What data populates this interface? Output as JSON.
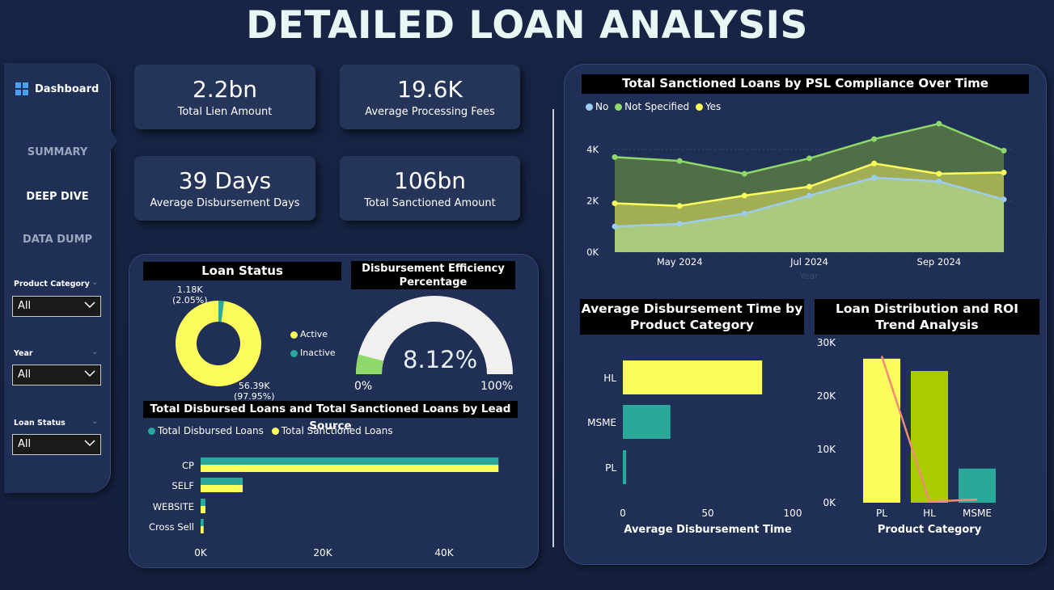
{
  "page": {
    "title": "DETAILED LOAN ANALYSIS"
  },
  "sidebar": {
    "dashboard_label": "Dashboard",
    "nav": [
      {
        "label": "SUMMARY",
        "active": false
      },
      {
        "label": "DEEP DIVE",
        "active": true
      },
      {
        "label": "DATA DUMP",
        "active": false
      }
    ],
    "filters": [
      {
        "label": "Product Category",
        "value": "All"
      },
      {
        "label": "Year",
        "value": "All"
      },
      {
        "label": "Loan Status",
        "value": "All"
      }
    ]
  },
  "kpis": [
    {
      "value": "2.2bn",
      "label": "Total Lien Amount"
    },
    {
      "value": "19.6K",
      "label": "Average Processing Fees"
    },
    {
      "value": "39 Days",
      "label": "Average Disbursement Days"
    },
    {
      "value": "106bn",
      "label": "Total Sanctioned Amount"
    }
  ],
  "colors": {
    "yellow": "#fcfc5c",
    "teal": "#2aa89a",
    "light_blue": "#9ecbf0",
    "green": "#8fd96a",
    "lime": "#a8cc00",
    "salmon": "#f08a7a",
    "gauge_track": "#f2f0ef",
    "gauge_fill": "#8fd96a"
  },
  "chart_data": [
    {
      "type": "pie",
      "title": "Loan Status",
      "labels": [
        "Active",
        "Inactive"
      ],
      "values": [
        56390,
        1180
      ],
      "data_labels": [
        "56.39K\n(97.95%)",
        "1.18K\n(2.05%)"
      ],
      "legend": [
        "Active",
        "Inactive"
      ]
    },
    {
      "type": "gauge",
      "title": "Disbursement Efficiency Percentage",
      "value": 8.12,
      "value_label": "8.12%",
      "min_label": "0%",
      "max_label": "100%",
      "min": 0,
      "max": 100
    },
    {
      "type": "bar",
      "title": "Total Disbursed Loans and Total Sanctioned Loans by Lead Source",
      "categories": [
        "CP",
        "SELF",
        "WEBSITE",
        "Cross Sell"
      ],
      "series": [
        {
          "name": "Total Disbursed Loans",
          "values": [
            49500,
            7000,
            800,
            500
          ]
        },
        {
          "name": "Total Sanctioned Loans",
          "values": [
            49500,
            7000,
            800,
            500
          ]
        }
      ],
      "xticks": [
        "0K",
        "20K",
        "40K"
      ],
      "xlim": [
        0,
        50000
      ]
    },
    {
      "type": "area",
      "title": "Total Sanctioned Loans by PSL Compliance Over Time",
      "legend": [
        "No",
        "Not Specified",
        "Yes"
      ],
      "x": [
        "2024-04",
        "2024-05",
        "2024-06",
        "2024-07",
        "2024-08",
        "2024-09",
        "2024-10"
      ],
      "xticks": [
        "May 2024",
        "Jul 2024",
        "Sep 2024"
      ],
      "xlabel": "Year",
      "yticks": [
        "0K",
        "2K",
        "4K"
      ],
      "ylim": [
        0,
        5000
      ],
      "series": [
        {
          "name": "No",
          "values": [
            1000,
            1100,
            1500,
            2200,
            2900,
            2750,
            2050
          ]
        },
        {
          "name": "Not Specified",
          "values": [
            3700,
            3550,
            3050,
            3650,
            4400,
            5000,
            3950
          ]
        },
        {
          "name": "Yes",
          "values": [
            1900,
            1800,
            2200,
            2550,
            3450,
            3050,
            3100
          ]
        }
      ]
    },
    {
      "type": "bar",
      "orientation": "horizontal",
      "title": "Average Disbursement Time by Product Category",
      "categories": [
        "HL",
        "MSME",
        "PL"
      ],
      "values": [
        82,
        28,
        2
      ],
      "xticks": [
        "0",
        "50",
        "100"
      ],
      "xlabel": "Average Disbursement Time",
      "xlim": [
        0,
        100
      ]
    },
    {
      "type": "bar",
      "title": "Loan Distribution and ROI Trend Analysis",
      "categories": [
        "PL",
        "HL",
        "MSME"
      ],
      "values": [
        27000,
        24700,
        6400
      ],
      "line_values": [
        27500,
        200,
        600
      ],
      "yticks": [
        "0K",
        "10K",
        "20K",
        "30K"
      ],
      "xlabel": "Product Category",
      "ylim": [
        0,
        30000
      ]
    }
  ]
}
